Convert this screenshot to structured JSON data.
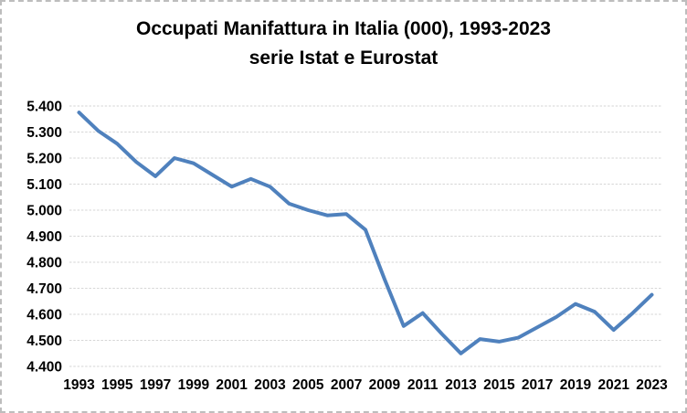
{
  "title": {
    "line1": "Occupati Manifattura in Italia (000), 1993-2023",
    "line2": "serie Istat e Eurostat"
  },
  "chart_data": {
    "type": "line",
    "title": "Occupati Manifattura in Italia (000), 1993-2023 serie Istat e Eurostat",
    "x": [
      1993,
      1994,
      1995,
      1996,
      1997,
      1998,
      1999,
      2000,
      2001,
      2002,
      2003,
      2004,
      2005,
      2006,
      2007,
      2008,
      2009,
      2010,
      2011,
      2012,
      2013,
      2014,
      2015,
      2016,
      2017,
      2018,
      2019,
      2020,
      2021,
      2022,
      2023
    ],
    "series": [
      {
        "name": "Occupati manifattura (000)",
        "values": [
          5375,
          5305,
          5255,
          5185,
          5130,
          5200,
          5180,
          5135,
          5090,
          5120,
          5090,
          5025,
          5000,
          4980,
          4985,
          4925,
          4735,
          4555,
          4605,
          4525,
          4450,
          4505,
          4495,
          4510,
          4550,
          4590,
          4640,
          4610,
          4540,
          4605,
          4675
        ]
      }
    ],
    "xlabel": "",
    "ylabel": "",
    "ylim": [
      4400,
      5400
    ],
    "ytick_step": 100,
    "ytick_labels": [
      "4.400",
      "4.500",
      "4.600",
      "4.700",
      "4.800",
      "4.900",
      "5.000",
      "5.100",
      "5.200",
      "5.300",
      "5.400"
    ],
    "xtick_labels": [
      "1993",
      "1995",
      "1997",
      "1999",
      "2001",
      "2003",
      "2005",
      "2007",
      "2009",
      "2011",
      "2013",
      "2015",
      "2017",
      "2019",
      "2021",
      "2023"
    ],
    "grid": true,
    "legend_position": "none",
    "colors": {
      "line": "#4F81BD",
      "grid": "#d6d6d6",
      "text": "#000000",
      "background": "#ffffff"
    }
  }
}
